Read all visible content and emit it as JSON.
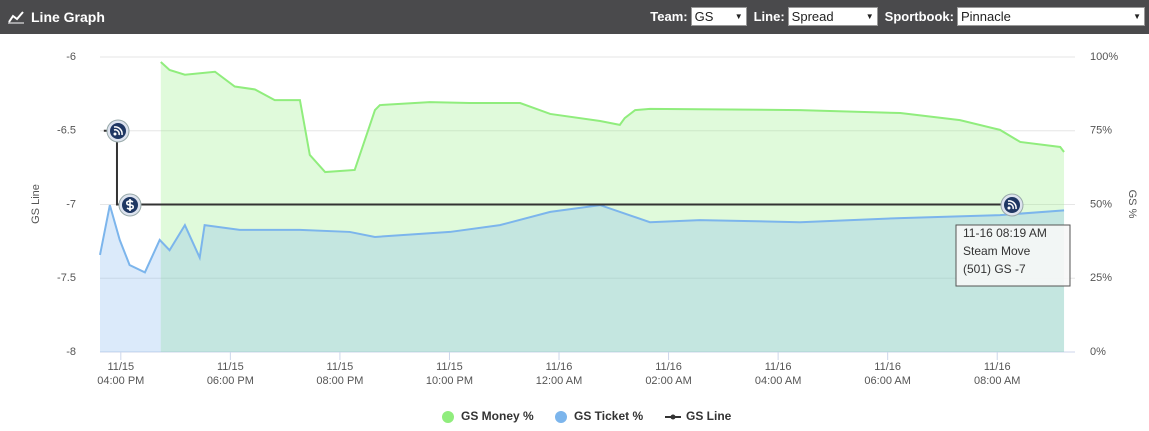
{
  "header": {
    "title": "Line Graph",
    "team_label": "Team:",
    "team_value": "GS",
    "line_label": "Line:",
    "line_value": "Spread",
    "sportsbook_label": "Sportbook:",
    "sportsbook_value": "Pinnacle"
  },
  "chart_data": {
    "type": "line",
    "y_label": "GS Line",
    "y2_label": "GS %",
    "xlim": [
      15.62,
      33.42
    ],
    "xticks": [
      {
        "value": 16,
        "date": "11/15",
        "label": "04:00 PM"
      },
      {
        "value": 18,
        "date": "11/15",
        "label": "06:00 PM"
      },
      {
        "value": 20,
        "date": "11/15",
        "label": "08:00 PM"
      },
      {
        "value": 22,
        "date": "11/15",
        "label": "10:00 PM"
      },
      {
        "value": 24,
        "date": "11/16",
        "label": "12:00 AM"
      },
      {
        "value": 26,
        "date": "11/16",
        "label": "02:00 AM"
      },
      {
        "value": 28,
        "date": "11/16",
        "label": "04:00 AM"
      },
      {
        "value": 30,
        "date": "11/16",
        "label": "06:00 AM"
      },
      {
        "value": 32,
        "date": "11/16",
        "label": "08:00 AM"
      }
    ],
    "ylim": [
      -8,
      -6
    ],
    "yticks": [
      -6,
      -6.5,
      -7,
      -7.5,
      -8
    ],
    "y2lim": [
      0,
      100
    ],
    "y2ticks": [
      {
        "value": 100,
        "label": "100%"
      },
      {
        "value": 75,
        "label": "75%"
      },
      {
        "value": 50,
        "label": "50%"
      },
      {
        "value": 25,
        "label": "25%"
      },
      {
        "value": 0,
        "label": "0%"
      }
    ],
    "grid": true,
    "series": [
      {
        "name": "GS Money %",
        "color": "#90ed7d",
        "axis": "y2",
        "area": true,
        "x": [
          16.73,
          16.89,
          17.17,
          17.72,
          18.08,
          18.45,
          18.81,
          19.27,
          19.45,
          19.73,
          20.27,
          20.64,
          20.73,
          21.64,
          22.37,
          23.29,
          23.84,
          24.75,
          25.11,
          25.2,
          25.39,
          25.66,
          28.4,
          30.23,
          31.32,
          32.05,
          32.42,
          33.15,
          33.22
        ],
        "values": [
          98.3,
          95.6,
          94,
          95,
          90,
          89,
          85.4,
          85.4,
          66.8,
          61,
          61.7,
          82,
          83.7,
          84.7,
          84.4,
          84.4,
          80.7,
          78.3,
          77,
          79.3,
          82,
          82.4,
          82,
          81,
          78.6,
          75.3,
          71.2,
          69.5,
          67.8
        ]
      },
      {
        "name": "GS Ticket %",
        "color": "#7cb5ec",
        "axis": "y2",
        "area": true,
        "x": [
          15.62,
          15.8,
          15.98,
          16.16,
          16.44,
          16.71,
          16.89,
          17.17,
          17.44,
          17.53,
          18.17,
          19.27,
          20.18,
          20.64,
          22.01,
          22.92,
          23.84,
          24.75,
          25.66,
          26.57,
          28.4,
          30.23,
          32.05,
          33.22
        ],
        "values": [
          32.9,
          49.8,
          38,
          29.5,
          27,
          38,
          34.5,
          43,
          32,
          43,
          41.4,
          41.4,
          40.7,
          39,
          40.7,
          43,
          47.5,
          49.8,
          44,
          44.7,
          44,
          45.4,
          46.4,
          48
        ]
      },
      {
        "name": "GS Line",
        "color": "#333333",
        "area": false,
        "x": [
          15.69,
          15.93,
          15.93,
          32.25
        ],
        "values": [
          -6.5,
          -6.5,
          -7,
          -7
        ]
      }
    ],
    "tooltip": {
      "time": "11-16 08:19 AM",
      "event": "Steam Move",
      "detail": "(501) GS -7"
    }
  }
}
